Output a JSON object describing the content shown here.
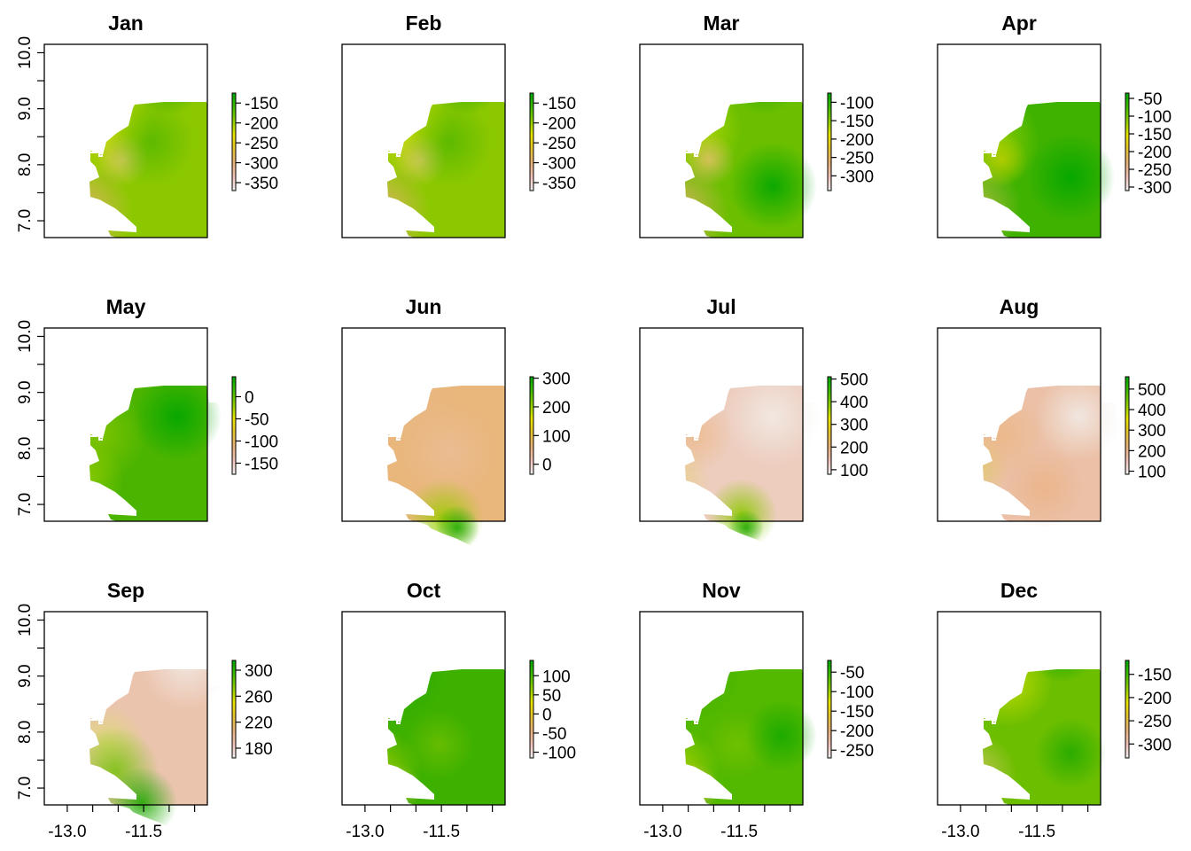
{
  "chart_data": [
    {
      "type": "heatmap",
      "title": "Jan",
      "legend_ticks": [
        "-150",
        "-200",
        "-250",
        "-300",
        "-350"
      ],
      "legend_values": [
        -150,
        -200,
        -250,
        -300,
        -350
      ],
      "value_range": [
        -370,
        -125
      ],
      "color_scheme": "terrain"
    },
    {
      "type": "heatmap",
      "title": "Feb",
      "legend_ticks": [
        "-150",
        "-200",
        "-250",
        "-300",
        "-350"
      ],
      "legend_values": [
        -150,
        -200,
        -250,
        -300,
        -350
      ],
      "value_range": [
        -370,
        -125
      ],
      "color_scheme": "terrain"
    },
    {
      "type": "heatmap",
      "title": "Mar",
      "legend_ticks": [
        "-100",
        "-150",
        "-200",
        "-250",
        "-300"
      ],
      "legend_values": [
        -100,
        -150,
        -200,
        -250,
        -300
      ],
      "value_range": [
        -340,
        -75
      ],
      "color_scheme": "terrain"
    },
    {
      "type": "heatmap",
      "title": "Apr",
      "legend_ticks": [
        "-50",
        "-100",
        "-150",
        "-200",
        "-250",
        "-300"
      ],
      "legend_values": [
        -50,
        -100,
        -150,
        -200,
        -250,
        -300
      ],
      "value_range": [
        -310,
        -35
      ],
      "color_scheme": "terrain"
    },
    {
      "type": "heatmap",
      "title": "May",
      "legend_ticks": [
        "0",
        "-50",
        "-100",
        "-150"
      ],
      "legend_values": [
        0,
        -50,
        -100,
        -150
      ],
      "value_range": [
        -175,
        45
      ],
      "color_scheme": "terrain"
    },
    {
      "type": "heatmap",
      "title": "Jun",
      "legend_ticks": [
        "300",
        "200",
        "100",
        "0"
      ],
      "legend_values": [
        300,
        200,
        100,
        0
      ],
      "value_range": [
        -35,
        305
      ],
      "color_scheme": "terrain"
    },
    {
      "type": "heatmap",
      "title": "Jul",
      "legend_ticks": [
        "500",
        "400",
        "300",
        "200",
        "100"
      ],
      "legend_values": [
        500,
        400,
        300,
        200,
        100
      ],
      "value_range": [
        80,
        510
      ],
      "color_scheme": "terrain"
    },
    {
      "type": "heatmap",
      "title": "Aug",
      "legend_ticks": [
        "500",
        "400",
        "300",
        "200",
        "100"
      ],
      "legend_values": [
        500,
        400,
        300,
        200,
        100
      ],
      "value_range": [
        85,
        560
      ],
      "color_scheme": "terrain"
    },
    {
      "type": "heatmap",
      "title": "Sep",
      "legend_ticks": [
        "300",
        "260",
        "220",
        "180"
      ],
      "legend_values": [
        300,
        260,
        220,
        180
      ],
      "value_range": [
        165,
        315
      ],
      "color_scheme": "terrain"
    },
    {
      "type": "heatmap",
      "title": "Oct",
      "legend_ticks": [
        "100",
        "50",
        "0",
        "-50",
        "-100"
      ],
      "legend_values": [
        100,
        50,
        0,
        -50,
        -100
      ],
      "value_range": [
        -115,
        140
      ],
      "color_scheme": "terrain"
    },
    {
      "type": "heatmap",
      "title": "Nov",
      "legend_ticks": [
        "-50",
        "-100",
        "-150",
        "-200",
        "-250"
      ],
      "legend_values": [
        -50,
        -100,
        -150,
        -200,
        -250
      ],
      "value_range": [
        -270,
        -20
      ],
      "color_scheme": "terrain"
    },
    {
      "type": "heatmap",
      "title": "Dec",
      "legend_ticks": [
        "-150",
        "-200",
        "-250",
        "-300"
      ],
      "legend_values": [
        -150,
        -200,
        -250,
        -300
      ],
      "value_range": [
        -330,
        -120
      ],
      "color_scheme": "terrain"
    }
  ],
  "axes": {
    "x_ticks": [
      "-13.0",
      "-11.5"
    ],
    "x_tick_values": [
      -13.0,
      -11.5
    ],
    "x_minor_tick_values": [
      -12.5,
      -12.0,
      -11.0,
      -10.5
    ],
    "x_range": [
      -13.45,
      -10.25
    ],
    "y_ticks": [
      "7.0",
      "8.0",
      "9.0",
      "10.0"
    ],
    "y_tick_values": [
      7.0,
      8.0,
      9.0,
      10.0
    ],
    "y_minor_tick_values": [
      7.5,
      8.5,
      9.5
    ],
    "y_range": [
      6.7,
      10.15
    ]
  },
  "colors": {
    "high": "#00A600",
    "mid": "#E6E600",
    "midlow": "#ECB176",
    "low": "#F2F2F2"
  }
}
